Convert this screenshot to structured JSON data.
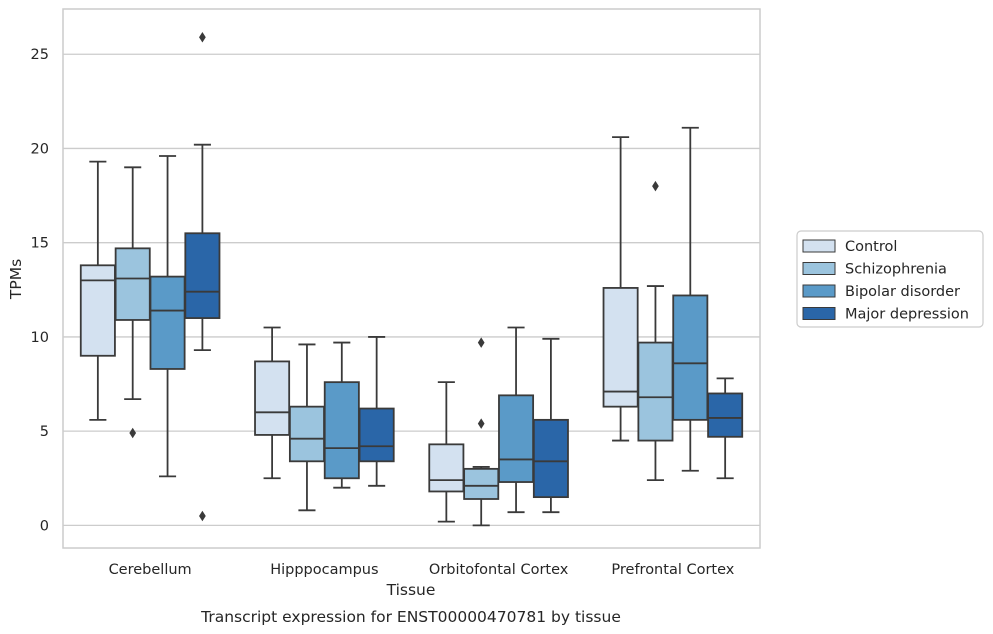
{
  "chart_data": {
    "type": "box",
    "xlabel": "Tissue",
    "ylabel": "TPMs",
    "caption": "Transcript expression for ENST00000470781 by tissue",
    "ylim": [
      -1.2,
      27.4
    ],
    "yticks": [
      0,
      5,
      10,
      15,
      20,
      25
    ],
    "grid": true,
    "legend_position": "outside-right",
    "categories": [
      "Cerebellum",
      "Hipppocampus",
      "Orbitofontal Cortex",
      "Prefrontal Cortex"
    ],
    "series": [
      {
        "name": "Control",
        "color": "#d3e1f0",
        "boxes": [
          {
            "whislo": 5.6,
            "q1": 9.0,
            "med": 13.0,
            "q3": 13.8,
            "whishi": 19.3,
            "fliers": []
          },
          {
            "whislo": 2.5,
            "q1": 4.8,
            "med": 6.0,
            "q3": 8.7,
            "whishi": 10.5,
            "fliers": []
          },
          {
            "whislo": 0.2,
            "q1": 1.8,
            "med": 2.4,
            "q3": 4.3,
            "whishi": 7.6,
            "fliers": []
          },
          {
            "whislo": 4.5,
            "q1": 6.3,
            "med": 7.1,
            "q3": 12.6,
            "whishi": 20.6,
            "fliers": []
          }
        ]
      },
      {
        "name": "Schizophrenia",
        "color": "#9bc4de",
        "boxes": [
          {
            "whislo": 6.7,
            "q1": 10.9,
            "med": 13.1,
            "q3": 14.7,
            "whishi": 19.0,
            "fliers": [
              4.9
            ]
          },
          {
            "whislo": 0.8,
            "q1": 3.4,
            "med": 4.6,
            "q3": 6.3,
            "whishi": 9.6,
            "fliers": []
          },
          {
            "whislo": 0.0,
            "q1": 1.4,
            "med": 2.1,
            "q3": 3.0,
            "whishi": 3.1,
            "fliers": [
              9.7,
              5.4
            ]
          },
          {
            "whislo": 2.4,
            "q1": 4.5,
            "med": 6.8,
            "q3": 9.7,
            "whishi": 12.7,
            "fliers": [
              18.0
            ]
          }
        ]
      },
      {
        "name": "Bipolar disorder",
        "color": "#5a9ac8",
        "boxes": [
          {
            "whislo": 2.6,
            "q1": 8.3,
            "med": 11.4,
            "q3": 13.2,
            "whishi": 19.6,
            "fliers": []
          },
          {
            "whislo": 2.0,
            "q1": 2.5,
            "med": 4.1,
            "q3": 7.6,
            "whishi": 9.7,
            "fliers": []
          },
          {
            "whislo": 0.7,
            "q1": 2.3,
            "med": 3.5,
            "q3": 6.9,
            "whishi": 10.5,
            "fliers": []
          },
          {
            "whislo": 2.9,
            "q1": 5.6,
            "med": 8.6,
            "q3": 12.2,
            "whishi": 21.1,
            "fliers": []
          }
        ]
      },
      {
        "name": "Major depression",
        "color": "#2a66a8",
        "boxes": [
          {
            "whislo": 9.3,
            "q1": 11.0,
            "med": 12.4,
            "q3": 15.5,
            "whishi": 20.2,
            "fliers": [
              25.9,
              0.5
            ]
          },
          {
            "whislo": 2.1,
            "q1": 3.4,
            "med": 4.2,
            "q3": 6.2,
            "whishi": 10.0,
            "fliers": []
          },
          {
            "whislo": 0.7,
            "q1": 1.5,
            "med": 3.4,
            "q3": 5.6,
            "whishi": 9.9,
            "fliers": []
          },
          {
            "whislo": 2.5,
            "q1": 4.7,
            "med": 5.7,
            "q3": 7.0,
            "whishi": 7.8,
            "fliers": []
          }
        ]
      }
    ]
  }
}
